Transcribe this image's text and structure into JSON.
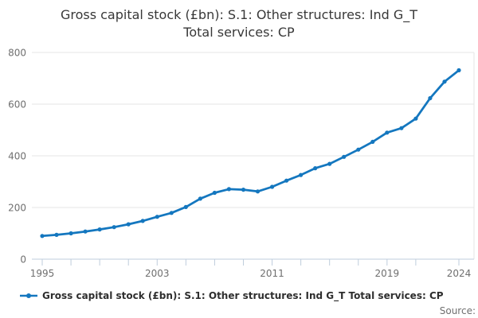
{
  "title": {
    "line1": "Gross capital stock (£bn): S.1: Other structures: Ind G_T",
    "line2": "Total services: CP"
  },
  "legend": {
    "label": "Gross capital stock (£bn): S.1: Other structures: Ind G_T Total services: CP"
  },
  "source": {
    "label": "Source:"
  },
  "colors": {
    "line": "#1477bf",
    "grid": "#e6e6e6",
    "axis_line": "#bfcddc",
    "axis_text": "#6f6f6f",
    "title_text": "#383838"
  },
  "chart_data": {
    "type": "line",
    "title": "Gross capital stock (£bn): S.1: Other structures: Ind G_T Total services: CP",
    "xlabel": "",
    "ylabel": "",
    "x": [
      1995,
      1996,
      1997,
      1998,
      1999,
      2000,
      2001,
      2002,
      2003,
      2004,
      2005,
      2006,
      2007,
      2008,
      2009,
      2010,
      2011,
      2012,
      2013,
      2014,
      2015,
      2016,
      2017,
      2018,
      2019,
      2020,
      2021,
      2022,
      2023,
      2024
    ],
    "series": [
      {
        "name": "Gross capital stock (£bn): S.1: Other structures: Ind G_T Total services: CP",
        "values": [
          90,
          94,
          100,
          107,
          115,
          124,
          135,
          148,
          164,
          179,
          202,
          234,
          257,
          271,
          269,
          262,
          280,
          304,
          326,
          352,
          369,
          396,
          424,
          454,
          490,
          507,
          544,
          623,
          687,
          731
        ]
      }
    ],
    "ylim": [
      0,
      800
    ],
    "yticks": [
      0,
      200,
      400,
      600,
      800
    ],
    "x_axis_tick_years": [
      1995,
      1997,
      1999,
      2001,
      2003,
      2005,
      2007,
      2009,
      2011,
      2013,
      2015,
      2017,
      2019,
      2021,
      2024
    ],
    "x_axis_label_years": [
      1995,
      2003,
      2011,
      2019,
      2024
    ],
    "grid": "horizontal-only",
    "legend_position": "bottom-left",
    "marker": "circle"
  }
}
